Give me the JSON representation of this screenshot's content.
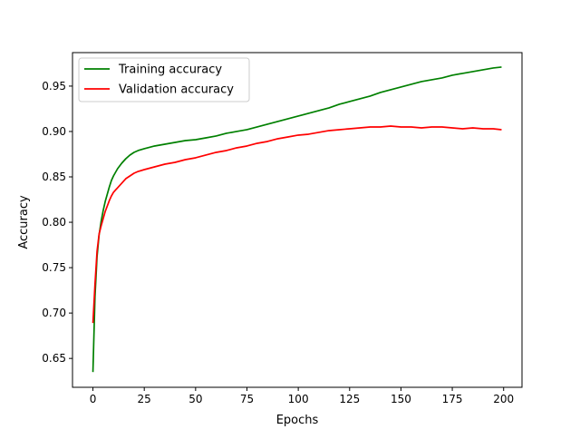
{
  "chart_data": {
    "type": "line",
    "title": "",
    "xlabel": "Epochs",
    "ylabel": "Accuracy",
    "xlim": [
      -9.95,
      208.95
    ],
    "ylim": [
      0.6182,
      0.9869
    ],
    "x_ticks": [
      0,
      25,
      50,
      75,
      100,
      125,
      150,
      175,
      200
    ],
    "x_tick_labels": [
      "0",
      "25",
      "50",
      "75",
      "100",
      "125",
      "150",
      "175",
      "200"
    ],
    "y_ticks": [
      0.65,
      0.7,
      0.75,
      0.8,
      0.85,
      0.9,
      0.95
    ],
    "y_tick_labels": [
      "0.65",
      "0.70",
      "0.75",
      "0.80",
      "0.85",
      "0.90",
      "0.95"
    ],
    "grid": false,
    "legend_position": "upper-left",
    "x": [
      0,
      1,
      2,
      3,
      4,
      5,
      6,
      7,
      8,
      9,
      10,
      12,
      14,
      16,
      18,
      20,
      22,
      25,
      30,
      35,
      40,
      45,
      50,
      55,
      60,
      65,
      70,
      75,
      80,
      85,
      90,
      95,
      100,
      105,
      110,
      115,
      120,
      125,
      130,
      135,
      140,
      145,
      150,
      155,
      160,
      165,
      170,
      175,
      180,
      185,
      190,
      195,
      199
    ],
    "series": [
      {
        "name": "Training accuracy",
        "color": "#008000",
        "values": [
          0.635,
          0.718,
          0.762,
          0.786,
          0.801,
          0.813,
          0.823,
          0.831,
          0.839,
          0.846,
          0.851,
          0.859,
          0.865,
          0.87,
          0.874,
          0.877,
          0.879,
          0.881,
          0.884,
          0.886,
          0.888,
          0.89,
          0.891,
          0.893,
          0.895,
          0.898,
          0.9,
          0.902,
          0.905,
          0.908,
          0.911,
          0.914,
          0.917,
          0.92,
          0.923,
          0.926,
          0.93,
          0.933,
          0.936,
          0.939,
          0.943,
          0.946,
          0.949,
          0.952,
          0.955,
          0.957,
          0.959,
          0.962,
          0.964,
          0.966,
          0.968,
          0.97,
          0.971
        ]
      },
      {
        "name": "Validation accuracy",
        "color": "#ff0000",
        "values": [
          0.689,
          0.732,
          0.768,
          0.787,
          0.796,
          0.804,
          0.812,
          0.818,
          0.824,
          0.829,
          0.833,
          0.838,
          0.843,
          0.848,
          0.851,
          0.854,
          0.856,
          0.858,
          0.861,
          0.864,
          0.866,
          0.869,
          0.871,
          0.874,
          0.877,
          0.879,
          0.882,
          0.884,
          0.887,
          0.889,
          0.892,
          0.894,
          0.896,
          0.897,
          0.899,
          0.901,
          0.902,
          0.903,
          0.904,
          0.905,
          0.905,
          0.906,
          0.905,
          0.905,
          0.904,
          0.905,
          0.905,
          0.904,
          0.903,
          0.904,
          0.903,
          0.903,
          0.902
        ]
      }
    ]
  }
}
